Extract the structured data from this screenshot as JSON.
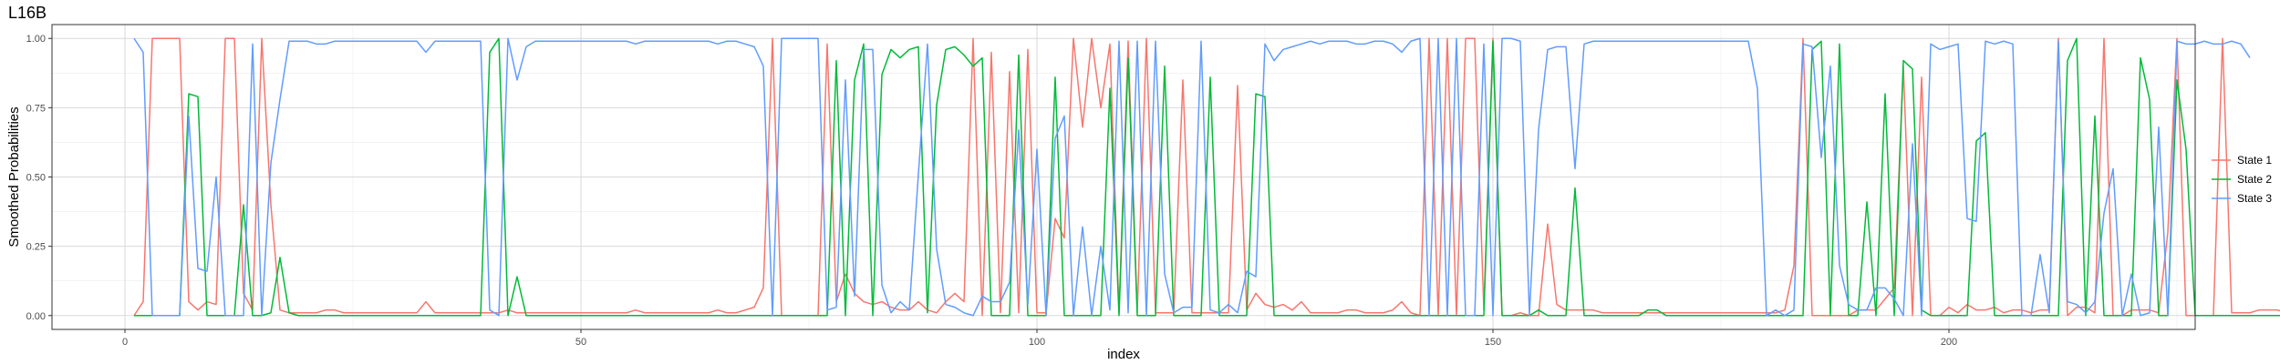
{
  "chart_data": {
    "type": "line",
    "title": "L16B",
    "xlabel": "index",
    "ylabel": "Smoothed Probabilities",
    "xlim": [
      -8,
      227
    ],
    "ylim": [
      -0.05,
      1.05
    ],
    "xticks": [
      0,
      50,
      100,
      150,
      200
    ],
    "yticks": [
      0.0,
      0.25,
      0.5,
      0.75,
      1.0
    ],
    "ytick_labels": [
      "0.00",
      "0.25",
      "0.50",
      "0.75",
      "1.00"
    ],
    "grid": true,
    "legend_position": "right",
    "colors": {
      "State 1": "#F8766D",
      "State 2": "#00BA38",
      "State 3": "#619CFF"
    },
    "series": [
      {
        "name": "State 1",
        "values": [
          0.0,
          0.05,
          1.0,
          1.0,
          1.0,
          1.0,
          0.05,
          0.02,
          0.05,
          0.04,
          1.0,
          1.0,
          0.08,
          0.02,
          1.0,
          0.4,
          0.02,
          0.01,
          0.01,
          0.01,
          0.01,
          0.02,
          0.02,
          0.01,
          0.01,
          0.01,
          0.01,
          0.01,
          0.01,
          0.01,
          0.01,
          0.01,
          0.05,
          0.01,
          0.01,
          0.01,
          0.01,
          0.01,
          0.01,
          0.01,
          0.01,
          0.02,
          0.01,
          0.01,
          0.01,
          0.01,
          0.01,
          0.01,
          0.01,
          0.01,
          0.01,
          0.01,
          0.01,
          0.01,
          0.01,
          0.02,
          0.01,
          0.01,
          0.01,
          0.01,
          0.01,
          0.01,
          0.01,
          0.01,
          0.02,
          0.01,
          0.01,
          0.02,
          0.03,
          0.1,
          1.0,
          0.0,
          0.0,
          0.0,
          0.0,
          0.0,
          0.98,
          0.05,
          0.15,
          0.08,
          0.05,
          0.04,
          0.05,
          0.03,
          0.02,
          0.02,
          0.05,
          0.02,
          0.01,
          0.05,
          0.08,
          0.05,
          1.0,
          0.0,
          0.95,
          0.01,
          0.88,
          0.01,
          0.96,
          0.01,
          0.01,
          0.35,
          0.28,
          1.0,
          0.68,
          1.0,
          0.75,
          0.98,
          0.01,
          0.99,
          0.01,
          1.0,
          0.01,
          0.01,
          0.01,
          0.85,
          0.01,
          0.01,
          0.01,
          0.01,
          0.01,
          0.83,
          0.02,
          0.08,
          0.04,
          0.03,
          0.04,
          0.02,
          0.05,
          0.01,
          0.01,
          0.01,
          0.01,
          0.02,
          0.02,
          0.01,
          0.01,
          0.01,
          0.02,
          0.05,
          0.01,
          0.0,
          1.0,
          0.0,
          1.0,
          0.0,
          1.0,
          1.0,
          0.02,
          1.0,
          0.0,
          0.0,
          0.01,
          0.0,
          0.0,
          0.33,
          0.04,
          0.02,
          0.02,
          0.02,
          0.02,
          0.01,
          0.01,
          0.01,
          0.01,
          0.01,
          0.01,
          0.01,
          0.01,
          0.01,
          0.01,
          0.01,
          0.01,
          0.01,
          0.01,
          0.01,
          0.01,
          0.01,
          0.01,
          0.01,
          0.01,
          0.02,
          0.18,
          1.0,
          0.0,
          0.0,
          0.0,
          0.0,
          0.0,
          0.02,
          0.02,
          0.02,
          0.06,
          0.1,
          0.9,
          0.0,
          0.86,
          0.0,
          0.0,
          0.03,
          0.01,
          0.04,
          0.02,
          0.02,
          0.03,
          0.01,
          0.02,
          0.02,
          0.01,
          0.02,
          0.02,
          1.0,
          0.0,
          0.03,
          0.03,
          0.01,
          1.0,
          0.0,
          0.0,
          0.02,
          0.02,
          0.02,
          0.01,
          0.3,
          1.0,
          0.0,
          0.0,
          0.0,
          0.0,
          1.0,
          0.01,
          0.01,
          0.01,
          0.02,
          0.02,
          0.02,
          0.01,
          0.02,
          0.06
        ]
      },
      {
        "name": "State 2",
        "values": [
          0.0,
          0.0,
          0.0,
          0.0,
          0.0,
          0.0,
          0.8,
          0.79,
          0.0,
          0.0,
          0.0,
          0.0,
          0.4,
          0.0,
          0.0,
          0.01,
          0.21,
          0.01,
          0.0,
          0.0,
          0.0,
          0.0,
          0.0,
          0.0,
          0.0,
          0.0,
          0.0,
          0.0,
          0.0,
          0.0,
          0.0,
          0.0,
          0.0,
          0.0,
          0.0,
          0.0,
          0.0,
          0.0,
          0.0,
          0.95,
          1.0,
          0.0,
          0.14,
          0.0,
          0.0,
          0.0,
          0.0,
          0.0,
          0.0,
          0.0,
          0.0,
          0.0,
          0.0,
          0.0,
          0.0,
          0.0,
          0.0,
          0.0,
          0.0,
          0.0,
          0.0,
          0.0,
          0.0,
          0.0,
          0.0,
          0.0,
          0.0,
          0.0,
          0.0,
          0.0,
          0.0,
          0.0,
          0.0,
          0.0,
          0.0,
          0.0,
          0.0,
          0.92,
          0.0,
          0.85,
          0.98,
          0.0,
          0.87,
          0.96,
          0.93,
          0.96,
          0.97,
          0.01,
          0.76,
          0.96,
          0.97,
          0.94,
          0.9,
          0.93,
          0.0,
          0.0,
          0.0,
          0.94,
          0.0,
          0.0,
          0.0,
          0.86,
          0.0,
          0.0,
          0.0,
          0.0,
          0.0,
          0.82,
          0.0,
          0.93,
          0.0,
          0.0,
          0.0,
          0.9,
          0.0,
          0.0,
          0.0,
          0.0,
          0.86,
          0.0,
          0.0,
          0.0,
          0.0,
          0.8,
          0.79,
          0.0,
          0.0,
          0.0,
          0.0,
          0.0,
          0.0,
          0.0,
          0.0,
          0.0,
          0.0,
          0.0,
          0.0,
          0.0,
          0.0,
          0.0,
          0.0,
          0.0,
          0.0,
          0.0,
          0.0,
          0.0,
          0.0,
          0.0,
          0.0,
          0.99,
          0.0,
          0.0,
          0.0,
          0.0,
          0.02,
          0.0,
          0.0,
          0.0,
          0.46,
          0.0,
          0.0,
          0.0,
          0.0,
          0.0,
          0.0,
          0.0,
          0.02,
          0.02,
          0.0,
          0.0,
          0.0,
          0.0,
          0.0,
          0.0,
          0.0,
          0.0,
          0.0,
          0.0,
          0.0,
          0.0,
          0.0,
          0.0,
          0.0,
          0.0,
          0.96,
          0.99,
          0.0,
          0.98,
          0.0,
          0.0,
          0.41,
          0.0,
          0.8,
          0.0,
          0.92,
          0.89,
          0.02,
          0.0,
          0.0,
          0.0,
          0.0,
          0.0,
          0.63,
          0.66,
          0.0,
          0.0,
          0.0,
          0.0,
          0.0,
          0.0,
          0.0,
          0.0,
          0.92,
          1.0,
          0.0,
          0.72,
          0.0,
          0.0,
          0.0,
          0.0,
          0.93,
          0.78,
          0.0,
          0.0,
          0.85,
          0.6,
          0.0,
          0.0,
          0.0,
          0.0,
          0.0,
          0.0,
          0.0,
          0.0,
          0.0,
          0.0,
          0.0,
          0.0,
          0.0
        ]
      },
      {
        "name": "State 3",
        "values": [
          1.0,
          0.95,
          0.0,
          0.0,
          0.0,
          0.0,
          0.72,
          0.17,
          0.16,
          0.5,
          0.0,
          0.0,
          0.0,
          0.98,
          0.0,
          0.55,
          0.78,
          0.99,
          0.99,
          0.99,
          0.98,
          0.98,
          0.99,
          0.99,
          0.99,
          0.99,
          0.99,
          0.99,
          0.99,
          0.99,
          0.99,
          0.99,
          0.95,
          0.99,
          0.99,
          0.99,
          0.99,
          0.99,
          0.99,
          0.02,
          0.0,
          1.0,
          0.85,
          0.97,
          0.99,
          0.99,
          0.99,
          0.99,
          0.99,
          0.99,
          0.99,
          0.99,
          0.99,
          0.99,
          0.99,
          0.98,
          0.99,
          0.99,
          0.99,
          0.99,
          0.99,
          0.99,
          0.99,
          0.99,
          0.98,
          0.99,
          0.99,
          0.98,
          0.97,
          0.9,
          0.0,
          1.0,
          1.0,
          1.0,
          1.0,
          1.0,
          0.02,
          0.03,
          0.85,
          0.07,
          0.96,
          0.96,
          0.11,
          0.01,
          0.05,
          0.02,
          0.51,
          0.98,
          0.24,
          0.04,
          0.03,
          0.01,
          0.0,
          0.07,
          0.05,
          0.05,
          0.12,
          0.67,
          0.04,
          0.6,
          0.0,
          0.64,
          0.72,
          0.0,
          0.32,
          0.0,
          0.25,
          0.02,
          0.99,
          0.01,
          0.99,
          0.0,
          0.99,
          0.15,
          0.01,
          0.03,
          0.03,
          0.99,
          0.02,
          0.01,
          0.04,
          0.01,
          0.16,
          0.14,
          0.98,
          0.92,
          0.96,
          0.97,
          0.98,
          0.99,
          0.98,
          0.99,
          0.99,
          0.99,
          0.98,
          0.98,
          0.99,
          0.99,
          0.98,
          0.95,
          0.99,
          1.0,
          0.0,
          1.0,
          0.0,
          1.0,
          0.0,
          0.0,
          0.98,
          0.0,
          1.0,
          1.0,
          0.99,
          0.0,
          0.67,
          0.96,
          0.97,
          0.97,
          0.53,
          0.98,
          0.99,
          0.99,
          0.99,
          0.99,
          0.99,
          0.99,
          0.99,
          0.99,
          0.99,
          0.99,
          0.99,
          0.99,
          0.99,
          0.99,
          0.99,
          0.99,
          0.99,
          0.99,
          0.82,
          0.0,
          0.02,
          0.0,
          0.02,
          0.98,
          0.97,
          0.57,
          0.9,
          0.18,
          0.04,
          0.02,
          0.02,
          0.1,
          0.1,
          0.06,
          0.0,
          0.62,
          0.0,
          0.98,
          0.96,
          0.97,
          0.98,
          0.35,
          0.34,
          0.99,
          0.98,
          0.99,
          0.98,
          0.0,
          0.0,
          0.22,
          0.01,
          0.99,
          0.05,
          0.04,
          0.01,
          0.05,
          0.37,
          0.53,
          0.0,
          0.15,
          0.0,
          0.01,
          0.68,
          0.0,
          0.99,
          0.98,
          0.98,
          0.99,
          0.98,
          0.98,
          0.99,
          0.98,
          0.93
        ]
      }
    ]
  }
}
